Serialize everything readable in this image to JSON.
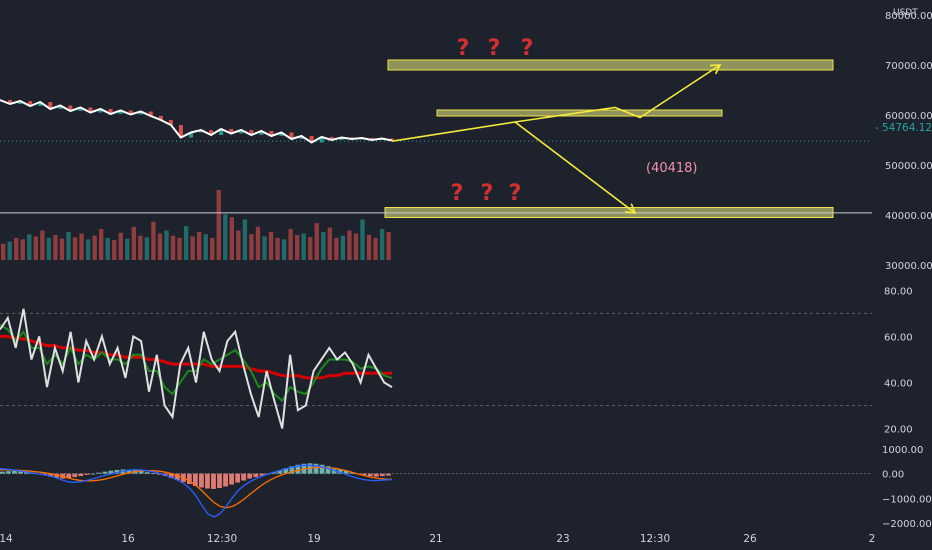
{
  "colors": {
    "background": "#1e222d",
    "axis_text": "#d1d4dc",
    "price_line": "#ffffff",
    "candle_up": "#26a69a",
    "candle_down": "#ef5350",
    "zone_fill": "#b5b86a",
    "zone_stroke": "#f0e14a",
    "arrow": "#f5ec3a",
    "question": "#d32f2f",
    "target_label": "#f48fb1",
    "rsi": "#e0e0e0",
    "rsi_ma_fast": "#1b8a1b",
    "rsi_ma_slow": "#d50000",
    "macd": "#2962ff",
    "signal": "#ff6d00",
    "current_price_badge": "#26a69a"
  },
  "chart_data": {
    "type": "line",
    "instrument_quote": "USDT",
    "price_axis": {
      "ticks": [
        80000,
        70000,
        60000,
        50000,
        40000,
        30000
      ],
      "tick_labels": [
        "80000.00",
        "70000.00",
        "60000.00",
        "50000.00",
        "40000.00",
        "30000.00"
      ],
      "range": [
        30000,
        83000
      ],
      "current_price": 54764.12,
      "current_price_label": "54764.12"
    },
    "x_axis": {
      "tick_labels": [
        "14",
        "16",
        "12:30",
        "19",
        "21",
        "23",
        "12:30",
        "26",
        "2"
      ]
    },
    "zones": [
      {
        "low": 69000,
        "high": 71000,
        "name": "upper-zone"
      },
      {
        "low": 60000,
        "high": 61000,
        "name": "middle-zone"
      },
      {
        "low": 39500,
        "high": 41500,
        "name": "lower-zone"
      }
    ],
    "horizontal_line": 40418,
    "question_marks": [
      "?",
      "?",
      "?",
      "?",
      "?",
      "?"
    ],
    "target_label": "(40418)",
    "price_series": [
      63000,
      62200,
      62800,
      61800,
      62600,
      61200,
      61900,
      60800,
      61500,
      60500,
      61200,
      60200,
      60900,
      60100,
      60700,
      59800,
      59000,
      58000,
      55500,
      56500,
      57000,
      56000,
      57200,
      56300,
      57000,
      56000,
      56800,
      55800,
      56500,
      55200,
      55800,
      54500,
      55600,
      55000,
      55500,
      55200,
      55400,
      55000,
      55300,
      54900
    ],
    "volume_panel": {
      "values": [
        22,
        25,
        30,
        28,
        35,
        32,
        40,
        30,
        34,
        29,
        38,
        31,
        36,
        28,
        33,
        42,
        30,
        27,
        37,
        29,
        45,
        33,
        31,
        52,
        36,
        40,
        33,
        30,
        46,
        32,
        38,
        35,
        30,
        95,
        62,
        58,
        40,
        55,
        35,
        45,
        32,
        38,
        30,
        28,
        42,
        34,
        36,
        31,
        50,
        38,
        44,
        30,
        33,
        40,
        36,
        55,
        34,
        30,
        42,
        38
      ]
    },
    "rsi_panel": {
      "ticks": [
        80,
        60,
        40,
        20
      ],
      "tick_labels": [
        "80.00",
        "60.00",
        "40.00",
        "20.00"
      ],
      "range": [
        15,
        88
      ],
      "bands": [
        70,
        30
      ],
      "rsi": [
        63,
        68,
        55,
        72,
        50,
        60,
        38,
        55,
        45,
        62,
        40,
        58,
        50,
        60,
        48,
        55,
        42,
        60,
        58,
        36,
        52,
        30,
        25,
        48,
        55,
        40,
        62,
        50,
        45,
        58,
        62,
        48,
        35,
        25,
        45,
        32,
        20,
        52,
        28,
        30,
        45,
        50,
        55,
        50,
        53,
        48,
        40,
        52,
        46,
        40,
        38
      ],
      "ma_fast": [
        65,
        63,
        58,
        62,
        55,
        55,
        48,
        52,
        48,
        55,
        48,
        52,
        50,
        53,
        50,
        50,
        48,
        52,
        52,
        45,
        45,
        38,
        35,
        40,
        45,
        45,
        50,
        48,
        50,
        52,
        54,
        50,
        45,
        38,
        40,
        35,
        32,
        38,
        36,
        35,
        40,
        46,
        50,
        50,
        50,
        49,
        46,
        47,
        46,
        43,
        42
      ],
      "ma_slow": [
        60,
        60,
        59,
        59,
        58,
        57,
        56,
        56,
        55,
        55,
        54,
        54,
        53,
        53,
        52,
        52,
        51,
        51,
        51,
        50,
        50,
        49,
        48,
        48,
        48,
        48,
        48,
        47,
        47,
        47,
        47,
        47,
        46,
        45,
        45,
        44,
        43,
        43,
        43,
        42,
        42,
        42,
        43,
        43,
        44,
        44,
        44,
        44,
        44,
        44,
        44
      ]
    },
    "macd_panel": {
      "ticks": [
        1000,
        0,
        -1000,
        -2000
      ],
      "tick_labels": [
        "1000.00",
        "0.00",
        "−1000.00",
        "−2000.00"
      ],
      "range": [
        -2200,
        1200
      ],
      "histogram": [
        80,
        100,
        120,
        90,
        60,
        30,
        -20,
        -60,
        -120,
        -160,
        -200,
        -180,
        -140,
        -100,
        -50,
        0,
        40,
        80,
        120,
        150,
        170,
        160,
        140,
        100,
        60,
        20,
        -40,
        -100,
        -180,
        -260,
        -340,
        -420,
        -500,
        -560,
        -600,
        -620,
        -580,
        -520,
        -440,
        -360,
        -280,
        -200,
        -140,
        -80,
        -20,
        60,
        140,
        220,
        300,
        360,
        400,
        420,
        400,
        360,
        300,
        240,
        180,
        120,
        60,
        0,
        -60,
        -100,
        -120,
        -100,
        -80
      ],
      "macd": [
        200,
        180,
        150,
        120,
        80,
        40,
        0,
        -40,
        -80,
        -150,
        -250,
        -320,
        -350,
        -330,
        -280,
        -220,
        -150,
        -80,
        -20,
        40,
        100,
        140,
        160,
        150,
        120,
        80,
        20,
        -60,
        -150,
        -260,
        -400,
        -600,
        -900,
        -1300,
        -1650,
        -1750,
        -1600,
        -1300,
        -950,
        -650,
        -450,
        -300,
        -180,
        -80,
        0,
        80,
        150,
        220,
        280,
        320,
        340,
        330,
        300,
        250,
        180,
        100,
        20,
        -80,
        -160,
        -220,
        -260,
        -280,
        -270,
        -250,
        -240
      ],
      "signal": [
        150,
        150,
        145,
        135,
        120,
        100,
        75,
        45,
        10,
        -40,
        -100,
        -170,
        -230,
        -270,
        -290,
        -290,
        -270,
        -230,
        -170,
        -100,
        -30,
        30,
        80,
        110,
        125,
        120,
        100,
        60,
        0,
        -80,
        -180,
        -310,
        -480,
        -700,
        -950,
        -1180,
        -1330,
        -1380,
        -1320,
        -1180,
        -1000,
        -800,
        -600,
        -420,
        -270,
        -150,
        -50,
        30,
        100,
        160,
        210,
        240,
        255,
        250,
        230,
        200,
        150,
        90,
        20,
        -50,
        -110,
        -160,
        -200,
        -220,
        -230
      ]
    }
  }
}
